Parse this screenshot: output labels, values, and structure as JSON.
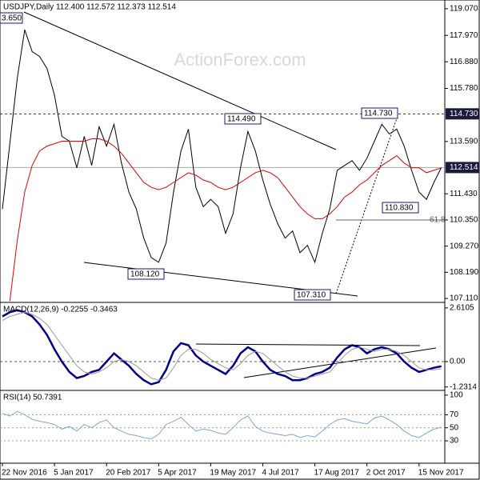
{
  "chart_data": [
    {
      "type": "line",
      "title": "USDJPY,Daily  112.400 112.572 112.373 112.514",
      "watermark": "ActionForex.com",
      "ylim": [
        106.98,
        119.43
      ],
      "yticks": [
        {
          "value": 119.07,
          "label": "119.070"
        },
        {
          "value": 117.97,
          "label": "117.970"
        },
        {
          "value": 116.88,
          "label": "116.880"
        },
        {
          "value": 115.78,
          "label": "115.780"
        },
        {
          "value": 113.59,
          "label": "113.590"
        },
        {
          "value": 111.43,
          "label": "111.430"
        },
        {
          "value": 110.35,
          "label": "110.350"
        },
        {
          "value": 109.27,
          "label": "109.270"
        },
        {
          "value": 108.19,
          "label": "108.190"
        },
        {
          "value": 107.11,
          "label": "107.110"
        }
      ],
      "price_labels": [
        {
          "value": 114.73,
          "label": "114.730"
        },
        112.514
      ],
      "annotations": [
        "3.650",
        "114.490",
        "114.730",
        "108.120",
        "107.310",
        "110.830",
        "61.8"
      ],
      "series": [
        {
          "color": "#000000",
          "values": [
            110.8,
            113.5,
            116.2,
            118.2,
            117.3,
            117.1,
            116.6,
            115.5,
            113.8,
            113.6,
            112.5,
            113.8,
            112.6,
            114.2,
            113.4,
            114.3,
            112.7,
            111.5,
            110.8,
            109.6,
            108.8,
            108.6,
            109.4,
            111.5,
            113.2,
            114.1,
            111.7,
            110.9,
            111.2,
            110.9,
            109.8,
            110.6,
            112.5,
            114.0,
            113.2,
            112.0,
            111.0,
            110.2,
            109.6,
            109.9,
            109.0,
            109.3,
            108.6,
            109.8,
            110.8,
            112.4,
            112.6,
            112.8,
            112.4,
            112.9,
            113.6,
            114.3,
            113.9,
            114.1,
            113.4,
            112.4,
            111.5,
            111.2,
            111.9,
            112.514
          ]
        },
        {
          "color": "#e00000",
          "values": [
            null,
            107.0,
            109.5,
            111.5,
            112.6,
            113.2,
            113.4,
            113.5,
            113.6,
            113.6,
            113.6,
            113.6,
            113.7,
            113.7,
            113.6,
            113.4,
            113.1,
            112.7,
            112.3,
            111.9,
            111.7,
            111.6,
            111.7,
            111.9,
            112.1,
            112.3,
            112.2,
            112.0,
            111.9,
            111.7,
            111.6,
            111.7,
            111.9,
            112.1,
            112.3,
            112.4,
            112.3,
            112.1,
            111.7,
            111.3,
            110.9,
            110.6,
            110.4,
            110.4,
            110.6,
            110.9,
            111.3,
            111.5,
            111.8,
            112.0,
            112.3,
            112.6,
            112.8,
            113.0,
            112.7,
            112.5,
            112.5,
            112.3,
            112.4,
            112.5
          ]
        }
      ]
    },
    {
      "type": "line",
      "title": "MACD(12,26,9) -0.2255 -0.3463",
      "ylim": [
        -1.36,
        2.84
      ],
      "yticks": [
        2.6105,
        {
          "value": 0,
          "label": "0.00"
        },
        -1.2314
      ],
      "series": [
        {
          "color": "#00008b",
          "width": 2.5,
          "values": [
            2.2,
            2.4,
            2.5,
            2.4,
            2.2,
            1.8,
            1.3,
            0.6,
            0.0,
            -0.5,
            -0.8,
            -0.7,
            -0.5,
            -0.4,
            0.0,
            0.4,
            0.1,
            -0.2,
            -0.6,
            -0.9,
            -1.1,
            -1.0,
            -0.4,
            0.5,
            0.9,
            0.8,
            0.3,
            0.0,
            -0.2,
            -0.4,
            -0.6,
            -0.2,
            0.4,
            0.7,
            0.5,
            0.0,
            -0.4,
            -0.6,
            -0.7,
            -0.9,
            -0.9,
            -0.8,
            -0.6,
            -0.5,
            -0.3,
            0.2,
            0.6,
            0.8,
            0.7,
            0.4,
            0.6,
            0.7,
            0.6,
            0.4,
            0.0,
            -0.3,
            -0.5,
            -0.4,
            -0.3,
            -0.2255
          ]
        },
        {
          "color": "#999999",
          "width": 1,
          "values": [
            2.0,
            2.2,
            2.3,
            2.4,
            2.3,
            2.1,
            1.8,
            1.3,
            0.8,
            0.3,
            -0.2,
            -0.5,
            -0.6,
            -0.5,
            -0.3,
            0.0,
            0.1,
            0.0,
            -0.2,
            -0.5,
            -0.8,
            -0.9,
            -0.8,
            -0.3,
            0.3,
            0.6,
            0.6,
            0.4,
            0.1,
            -0.1,
            -0.3,
            -0.4,
            -0.1,
            0.3,
            0.5,
            0.4,
            0.1,
            -0.2,
            -0.5,
            -0.7,
            -0.8,
            -0.8,
            -0.7,
            -0.6,
            -0.5,
            -0.1,
            0.3,
            0.6,
            0.7,
            0.6,
            0.5,
            0.6,
            0.6,
            0.5,
            0.3,
            0.0,
            -0.3,
            -0.4,
            -0.4,
            -0.3463
          ]
        }
      ]
    },
    {
      "type": "line",
      "title": "RSI(14) 50.7391",
      "ylim": [
        -3,
        106
      ],
      "yticks": [
        100,
        70,
        50,
        30
      ],
      "categories": [
        "22 Nov 2016",
        null,
        null,
        null,
        null,
        null,
        null,
        "5 Jan 2017",
        null,
        null,
        null,
        null,
        null,
        null,
        "20 Feb 2017",
        null,
        null,
        null,
        null,
        null,
        null,
        "5 Apr 2017",
        null,
        null,
        null,
        null,
        null,
        null,
        "19 May 2017",
        null,
        null,
        null,
        null,
        null,
        null,
        "4 Jul 2017",
        null,
        null,
        null,
        null,
        null,
        null,
        "17 Aug 2017",
        null,
        null,
        null,
        null,
        null,
        null,
        "2 Oct 2017",
        null,
        null,
        null,
        null,
        null,
        null,
        "15 Nov 2017",
        null,
        null,
        null
      ],
      "series": [
        {
          "color": "#7fa7d0",
          "width": 1,
          "values": [
            72,
            68,
            75,
            70,
            63,
            60,
            58,
            55,
            48,
            52,
            45,
            55,
            50,
            58,
            62,
            50,
            45,
            40,
            38,
            35,
            33,
            40,
            55,
            60,
            66,
            55,
            45,
            48,
            46,
            42,
            40,
            50,
            62,
            68,
            52,
            45,
            42,
            40,
            38,
            40,
            35,
            38,
            36,
            45,
            55,
            62,
            64,
            60,
            58,
            56,
            65,
            68,
            62,
            55,
            45,
            38,
            35,
            42,
            48,
            50.7391
          ]
        }
      ]
    }
  ]
}
